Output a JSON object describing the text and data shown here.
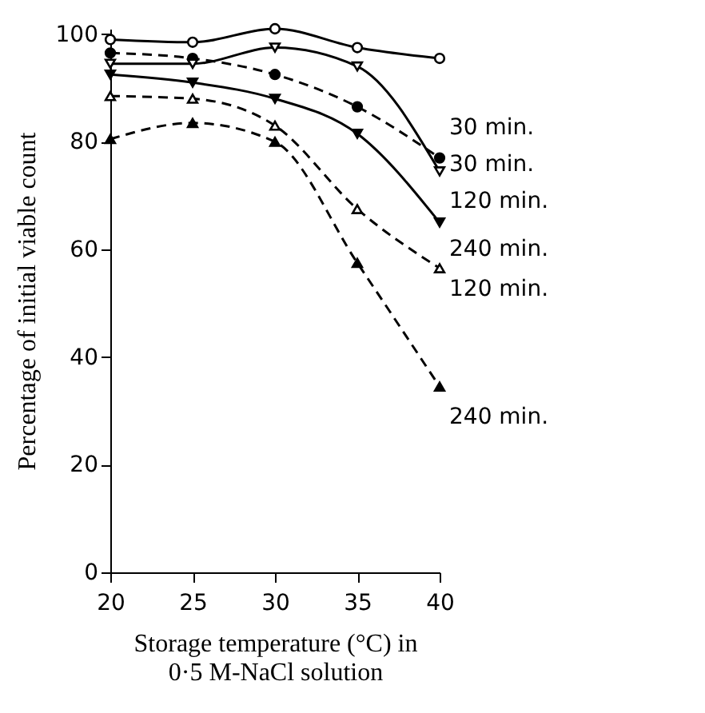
{
  "chart_data": {
    "type": "line",
    "xlabel": "Storage temperature (°C) in\n0·5 M-NaCl solution",
    "ylabel": "Percentage of initial viable count",
    "x": [
      20,
      25,
      30,
      35,
      40
    ],
    "xlim": [
      20,
      40
    ],
    "xticks": [
      20,
      25,
      30,
      35,
      40
    ],
    "ylim": [
      0,
      101
    ],
    "yticks": [
      0,
      20,
      40,
      60,
      80,
      100
    ],
    "series": [
      {
        "color": "#000000",
        "marker": "circle-open",
        "line_style": "solid",
        "values": [
          99,
          98.5,
          101,
          97.5,
          95.5
        ]
      },
      {
        "color": "#000000",
        "marker": "circle",
        "line_style": "dashed",
        "values": [
          96.5,
          95.5,
          92.5,
          86.5,
          77
        ]
      },
      {
        "color": "#000000",
        "marker": "triangle-down-open",
        "line_style": "solid",
        "values": [
          94.5,
          94.5,
          97.5,
          94,
          74.5
        ]
      },
      {
        "color": "#000000",
        "marker": "triangle-down",
        "line_style": "solid",
        "values": [
          92.5,
          91,
          88,
          81.5,
          65
        ]
      },
      {
        "color": "#000000",
        "marker": "triangle-open",
        "line_style": "dashed",
        "values": [
          88.5,
          88,
          83,
          67.5,
          56.5
        ]
      },
      {
        "color": "#000000",
        "marker": "triangle",
        "line_style": "dashed",
        "values": [
          80.5,
          83.5,
          80,
          57.5,
          34.5
        ]
      }
    ],
    "annotations": [
      "30 min.",
      "30 min.",
      "120 min.",
      "240 min.",
      "120 min.",
      "240 min."
    ]
  }
}
